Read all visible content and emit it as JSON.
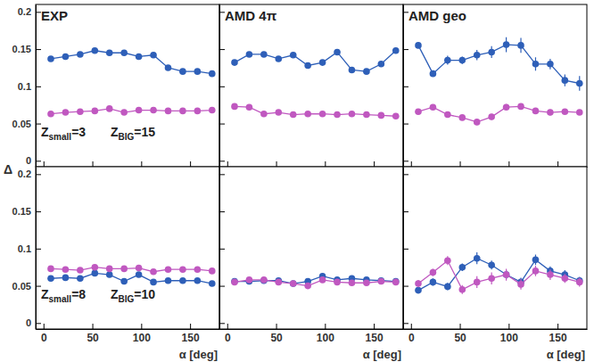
{
  "chart_data": [
    {
      "type": "line",
      "title": "EXP",
      "tick_labels": "y",
      "marker": "circle",
      "annotations": [
        {
          "base": "Z",
          "sub": "small",
          "rest": "=3"
        },
        {
          "base": "Z",
          "sub": "BIG",
          "rest": "=15"
        }
      ],
      "xlim": [
        -8,
        180
      ],
      "xticks": [
        0,
        50,
        100,
        150
      ],
      "ylim": [
        -0.008,
        0.21
      ],
      "yticks": [
        0,
        0.05,
        0.1,
        0.15,
        0.2
      ],
      "x": [
        7.5,
        22.5,
        37.5,
        52.5,
        67.5,
        82.5,
        97.5,
        112.5,
        127.5,
        142.5,
        157.5,
        172.5
      ],
      "series": [
        {
          "color": "#2e5fb8",
          "values": [
            0.137,
            0.14,
            0.143,
            0.148,
            0.145,
            0.145,
            0.14,
            0.142,
            0.125,
            0.12,
            0.12,
            0.117
          ]
        },
        {
          "color": "#c058c0",
          "values": [
            0.063,
            0.065,
            0.066,
            0.067,
            0.07,
            0.065,
            0.068,
            0.068,
            0.067,
            0.067,
            0.067,
            0.068
          ]
        }
      ]
    },
    {
      "type": "line",
      "title": "AMD 4π",
      "tick_labels": false,
      "marker": "circle",
      "xlim": [
        -8,
        180
      ],
      "xticks": [
        0,
        50,
        100,
        150
      ],
      "ylim": [
        -0.008,
        0.21
      ],
      "yticks": [
        0,
        0.05,
        0.1,
        0.15,
        0.2
      ],
      "x": [
        7.5,
        22.5,
        37.5,
        52.5,
        67.5,
        82.5,
        97.5,
        112.5,
        127.5,
        142.5,
        157.5,
        172.5
      ],
      "series": [
        {
          "color": "#2e5fb8",
          "values": [
            0.132,
            0.143,
            0.143,
            0.137,
            0.142,
            0.128,
            0.132,
            0.146,
            0.122,
            0.12,
            0.13,
            0.148
          ]
        },
        {
          "color": "#c058c0",
          "values": [
            0.073,
            0.072,
            0.063,
            0.065,
            0.062,
            0.063,
            0.063,
            0.062,
            0.063,
            0.062,
            0.061,
            0.06
          ]
        }
      ]
    },
    {
      "type": "line",
      "title": "AMD geo",
      "tick_labels": false,
      "marker": "circle",
      "xlim": [
        -8,
        180
      ],
      "xticks": [
        0,
        50,
        100,
        150
      ],
      "ylim": [
        -0.008,
        0.21
      ],
      "yticks": [
        0,
        0.05,
        0.1,
        0.15,
        0.2
      ],
      "x": [
        7.5,
        22.5,
        37.5,
        52.5,
        67.5,
        82.5,
        97.5,
        112.5,
        127.5,
        142.5,
        157.5,
        172.5
      ],
      "series": [
        {
          "color": "#2e5fb8",
          "values": [
            0.155,
            0.117,
            0.135,
            0.135,
            0.142,
            0.146,
            0.156,
            0.155,
            0.13,
            0.13,
            0.108,
            0.104
          ],
          "errors": [
            0.004,
            0.004,
            0.006,
            0.005,
            0.007,
            0.008,
            0.01,
            0.01,
            0.009,
            0.007,
            0.008,
            0.01
          ]
        },
        {
          "color": "#c058c0",
          "values": [
            0.066,
            0.072,
            0.062,
            0.058,
            0.052,
            0.059,
            0.072,
            0.073,
            0.067,
            0.065,
            0.066,
            0.065
          ],
          "errors": [
            0.003,
            0.003,
            0.003,
            0.003,
            0.004,
            0.004,
            0.004,
            0.004,
            0.004,
            0.004,
            0.003,
            0.003
          ]
        }
      ]
    },
    {
      "type": "line",
      "tick_labels": true,
      "marker": "circle",
      "xlabel": "α [deg]",
      "ylabel": "Δ",
      "annotations": [
        {
          "base": "Z",
          "sub": "small",
          "rest": "=8"
        },
        {
          "base": "Z",
          "sub": "BIG",
          "rest": "=10"
        }
      ],
      "xlim": [
        -8,
        180
      ],
      "xticks": [
        0,
        50,
        100,
        150
      ],
      "ylim": [
        -0.008,
        0.21
      ],
      "yticks": [
        0,
        0.05,
        0.1,
        0.15,
        0.2
      ],
      "x": [
        7.5,
        22.5,
        37.5,
        52.5,
        67.5,
        82.5,
        97.5,
        112.5,
        127.5,
        142.5,
        157.5,
        172.5
      ],
      "series": [
        {
          "color": "#2e5fb8",
          "values": [
            0.06,
            0.061,
            0.06,
            0.067,
            0.065,
            0.056,
            0.065,
            0.055,
            0.057,
            0.057,
            0.057,
            0.053
          ]
        },
        {
          "color": "#c058c0",
          "values": [
            0.073,
            0.072,
            0.071,
            0.075,
            0.073,
            0.073,
            0.074,
            0.069,
            0.072,
            0.072,
            0.072,
            0.07
          ]
        }
      ]
    },
    {
      "type": "line",
      "tick_labels": "x",
      "marker": "circle",
      "xlabel": "α [deg]",
      "xlim": [
        -8,
        180
      ],
      "xticks": [
        0,
        50,
        100,
        150
      ],
      "ylim": [
        -0.008,
        0.21
      ],
      "yticks": [
        0,
        0.05,
        0.1,
        0.15,
        0.2
      ],
      "x": [
        7.5,
        22.5,
        37.5,
        52.5,
        67.5,
        82.5,
        97.5,
        112.5,
        127.5,
        142.5,
        157.5,
        172.5
      ],
      "series": [
        {
          "color": "#2e5fb8",
          "values": [
            0.056,
            0.056,
            0.057,
            0.057,
            0.053,
            0.056,
            0.063,
            0.058,
            0.06,
            0.058,
            0.057,
            0.056
          ]
        },
        {
          "color": "#c058c0",
          "values": [
            0.055,
            0.058,
            0.058,
            0.055,
            0.053,
            0.05,
            0.058,
            0.055,
            0.054,
            0.054,
            0.056,
            0.055
          ]
        }
      ]
    },
    {
      "type": "line",
      "tick_labels": "x",
      "marker": "circle",
      "xlabel": "α [deg]",
      "xlim": [
        -8,
        180
      ],
      "xticks": [
        0,
        50,
        100,
        150
      ],
      "ylim": [
        -0.008,
        0.21
      ],
      "yticks": [
        0,
        0.05,
        0.1,
        0.15,
        0.2
      ],
      "x": [
        7.5,
        22.5,
        37.5,
        52.5,
        67.5,
        82.5,
        97.5,
        112.5,
        127.5,
        142.5,
        157.5,
        172.5
      ],
      "series": [
        {
          "color": "#2e5fb8",
          "values": [
            0.044,
            0.055,
            0.049,
            0.075,
            0.087,
            0.078,
            0.065,
            0.055,
            0.085,
            0.07,
            0.065,
            0.057
          ],
          "errors": [
            0.004,
            0.005,
            0.005,
            0.005,
            0.008,
            0.006,
            0.006,
            0.006,
            0.007,
            0.006,
            0.006,
            0.005
          ]
        },
        {
          "color": "#c058c0",
          "values": [
            0.053,
            0.068,
            0.084,
            0.045,
            0.055,
            0.06,
            0.065,
            0.052,
            0.07,
            0.065,
            0.06,
            0.055
          ],
          "errors": [
            0.005,
            0.005,
            0.006,
            0.006,
            0.008,
            0.008,
            0.008,
            0.007,
            0.007,
            0.007,
            0.006,
            0.006
          ]
        }
      ]
    }
  ]
}
